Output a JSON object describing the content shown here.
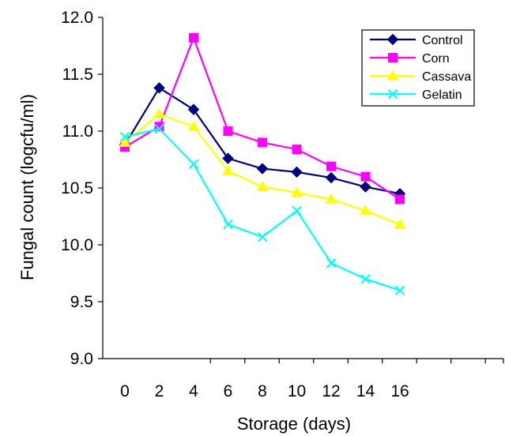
{
  "chart_data": {
    "type": "line",
    "xlabel": "Storage (days)",
    "ylabel": "Fungal count (logcfu/ml)",
    "x": [
      0,
      2,
      4,
      6,
      8,
      10,
      12,
      14,
      16
    ],
    "x_ticks": [
      "0",
      "2",
      "4",
      "6",
      "8",
      "10",
      "12",
      "14",
      "16"
    ],
    "ylim": [
      9.0,
      12.0
    ],
    "y_ticks": [
      "9.0",
      "9.5",
      "10.0",
      "10.5",
      "11.0",
      "11.5",
      "12.0"
    ],
    "grid": false,
    "legend_position": "top-right",
    "series": [
      {
        "name": "Control",
        "color": "#00007F",
        "marker": "diamond",
        "values": [
          10.88,
          11.38,
          11.19,
          10.76,
          10.67,
          10.64,
          10.59,
          10.51,
          10.45
        ]
      },
      {
        "name": "Corn",
        "color": "#FF00FF",
        "marker": "square",
        "values": [
          10.86,
          11.04,
          11.82,
          11.0,
          10.9,
          10.84,
          10.69,
          10.6,
          10.4
        ]
      },
      {
        "name": "Cassava",
        "color": "#FFFF00",
        "marker": "triangle",
        "values": [
          10.9,
          11.15,
          11.04,
          10.65,
          10.51,
          10.46,
          10.4,
          10.3,
          10.18
        ]
      },
      {
        "name": "Gelatin",
        "color": "#00FFFF",
        "marker": "x",
        "values": [
          10.95,
          11.02,
          10.71,
          10.18,
          10.07,
          10.3,
          9.84,
          9.7,
          9.6
        ]
      }
    ]
  }
}
